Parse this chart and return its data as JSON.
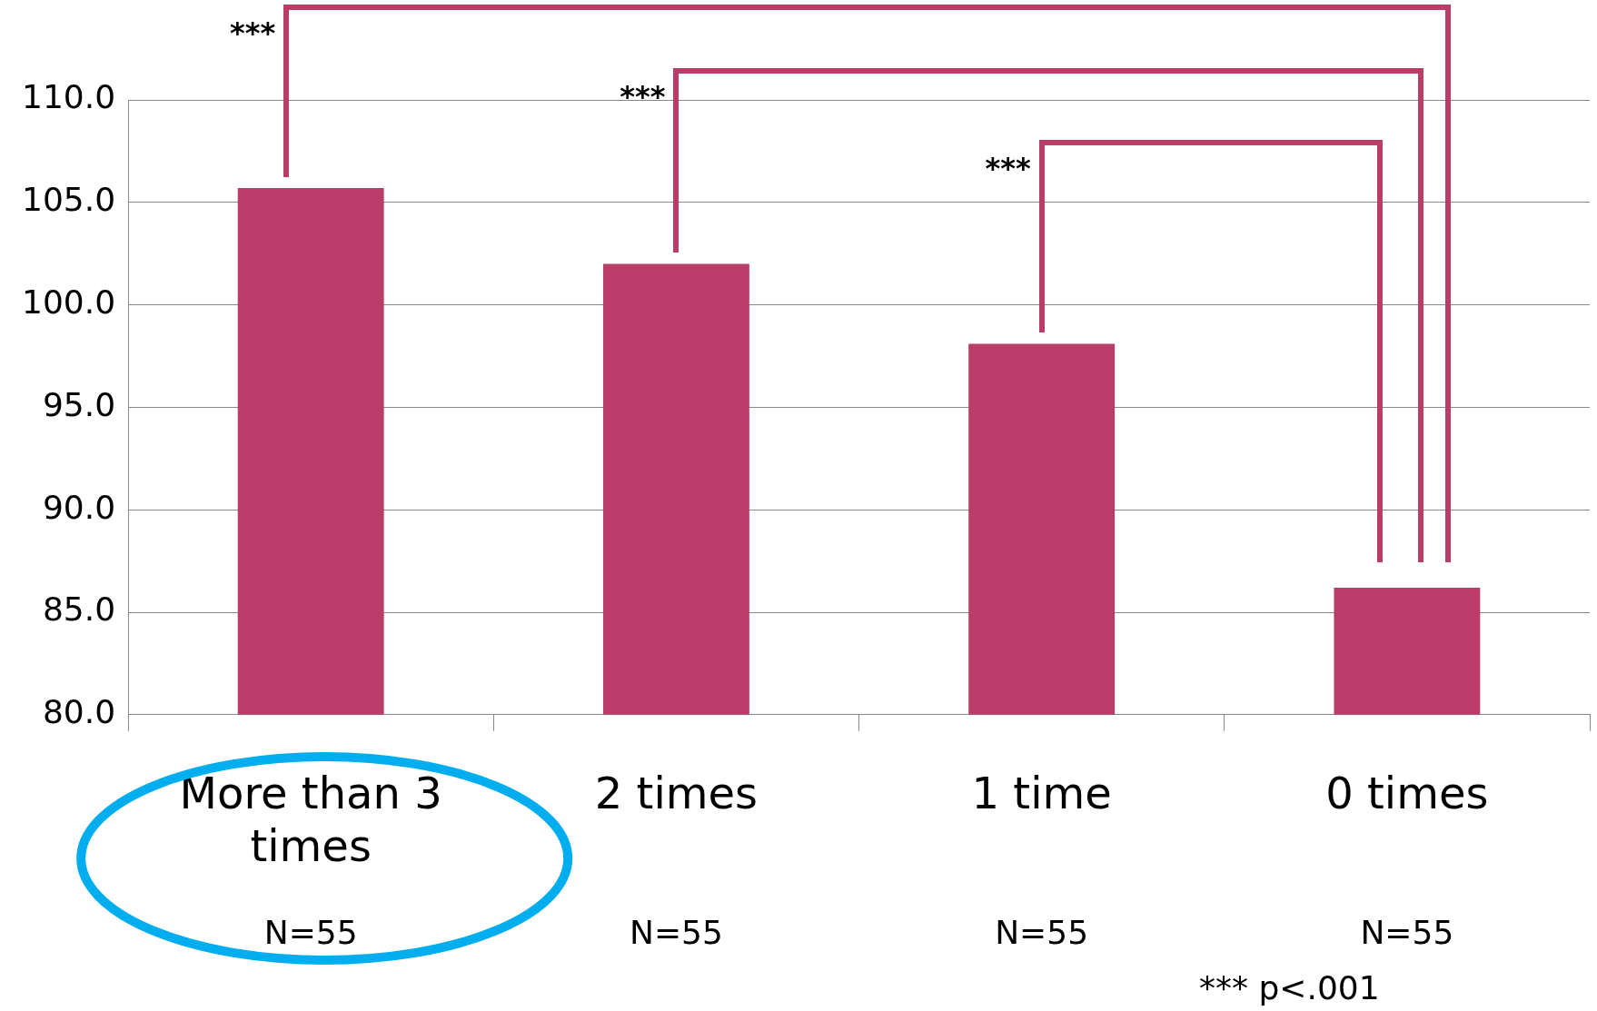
{
  "chart_data": {
    "type": "bar",
    "categories": [
      "More than 3 times",
      "2 times",
      "1 time",
      "0 times"
    ],
    "values": [
      105.7,
      102.0,
      98.1,
      86.2
    ],
    "color": "#b93d68",
    "ylim": [
      80,
      110
    ],
    "yticks": [
      {
        "value": 80,
        "label": "80.0"
      },
      {
        "value": 85,
        "label": "85.0"
      },
      {
        "value": 90,
        "label": "90.0"
      },
      {
        "value": 95,
        "label": "95.0"
      },
      {
        "value": 100,
        "label": "100.0"
      },
      {
        "value": 105,
        "label": "105.0"
      },
      {
        "value": 110,
        "label": "110.0"
      }
    ],
    "grid": "y",
    "annotations": [
      "***",
      "***",
      "***",
      "N=55",
      "N=55",
      "N=55",
      "N=55",
      "*** p<.001"
    ]
  }
}
